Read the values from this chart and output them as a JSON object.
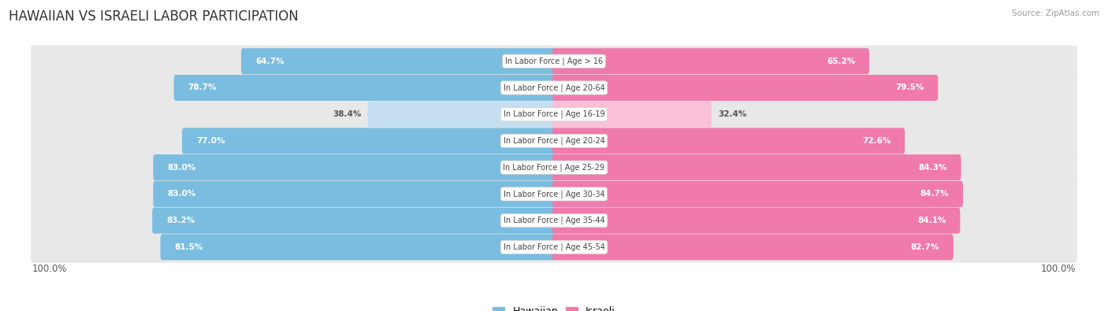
{
  "title": "HAWAIIAN VS ISRAELI LABOR PARTICIPATION",
  "source": "Source: ZipAtlas.com",
  "categories": [
    "In Labor Force | Age > 16",
    "In Labor Force | Age 20-64",
    "In Labor Force | Age 16-19",
    "In Labor Force | Age 20-24",
    "In Labor Force | Age 25-29",
    "In Labor Force | Age 30-34",
    "In Labor Force | Age 35-44",
    "In Labor Force | Age 45-54"
  ],
  "hawaiian": [
    64.7,
    78.7,
    38.4,
    77.0,
    83.0,
    83.0,
    83.2,
    81.5
  ],
  "israeli": [
    65.2,
    79.5,
    32.4,
    72.6,
    84.3,
    84.7,
    84.1,
    82.7
  ],
  "hawaiian_color": "#7abde0",
  "hawaiian_color_light": "#c5dff0",
  "israeli_color": "#f07aaa",
  "israeli_color_light": "#f9c0d8",
  "row_bg": "#e8e8e8",
  "page_bg": "#ffffff",
  "max_value": 100.0,
  "legend_hawaiian": "Hawaiian",
  "legend_israeli": "Israeli",
  "title_fontsize": 12,
  "bar_label_fontsize": 7.5,
  "cat_label_fontsize": 7.0,
  "tick_fontsize": 8.5
}
